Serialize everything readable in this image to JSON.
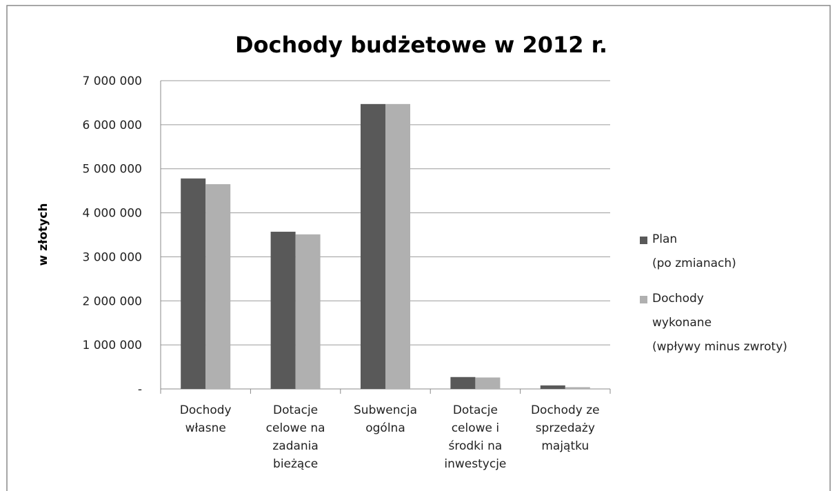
{
  "chart_data": {
    "type": "bar",
    "title": "Dochody budżetowe w 2012 r.",
    "y_label": "w złotych",
    "categories": [
      "Dochody\nwłasne",
      "Dotacje\ncelowe na\nzadania\nbieżące",
      "Subwencja\nogólna",
      "Dotacje\ncelowe i\nśrodki na\ninwestycje",
      "Dochody ze\nsprzedaży\nmajątku"
    ],
    "series": [
      {
        "name": "Plan\n(po zmianach)",
        "color": "#595959",
        "values": [
          4780000,
          3570000,
          6470000,
          270000,
          80000
        ]
      },
      {
        "name": "Dochody\nwykonane\n(wpływy minus zwroty)",
        "color": "#b0b0b0",
        "values": [
          4650000,
          3510000,
          6470000,
          260000,
          40000
        ]
      }
    ],
    "ylim": [
      0,
      7000000
    ],
    "yticks": [
      {
        "value": 0,
        "label": "-"
      },
      {
        "value": 1000000,
        "label": "1 000 000"
      },
      {
        "value": 2000000,
        "label": "2 000 000"
      },
      {
        "value": 3000000,
        "label": "3 000 000"
      },
      {
        "value": 4000000,
        "label": "4 000 000"
      },
      {
        "value": 5000000,
        "label": "5 000 000"
      },
      {
        "value": 6000000,
        "label": "6 000 000"
      },
      {
        "value": 7000000,
        "label": "7 000 000"
      }
    ],
    "grid": true,
    "legend": "right"
  }
}
